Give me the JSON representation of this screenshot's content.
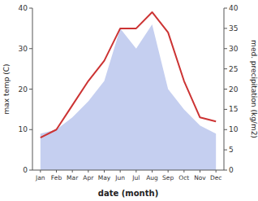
{
  "chart_data": {
    "type": "line",
    "xlabel": "date (month)",
    "ylabel": "max temp (C)",
    "y2label": "med. precipitation (kg/m2)",
    "categories": [
      "Jan",
      "Feb",
      "Mar",
      "Apr",
      "May",
      "Jun",
      "Jul",
      "Aug",
      "Sep",
      "Oct",
      "Nov",
      "Dec"
    ],
    "series": [
      {
        "type": "area",
        "axis": "y2",
        "color": "#c5cff0",
        "values": [
          9,
          10,
          13,
          17,
          22,
          35,
          30,
          36,
          20,
          15,
          11,
          9
        ]
      },
      {
        "type": "line",
        "color": "#cc3333",
        "values": [
          8,
          10,
          16,
          22,
          27,
          35,
          35,
          39,
          34,
          22,
          13,
          12
        ]
      }
    ],
    "ylim": [
      0,
      40
    ],
    "yticks": [
      0,
      10,
      20,
      30,
      40
    ],
    "y2lim": [
      0,
      40
    ],
    "y2ticks": [
      0,
      5,
      10,
      15,
      20,
      25,
      30,
      35,
      40
    ],
    "grid": false
  }
}
